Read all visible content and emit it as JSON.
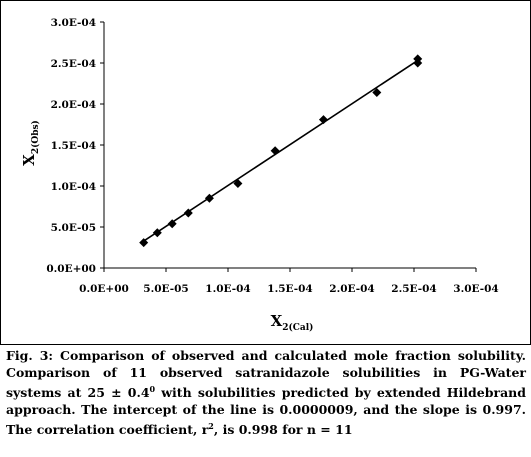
{
  "chart_data": {
    "type": "scatter",
    "xlabel": "X",
    "xlabel_sub": "2(Cal)",
    "ylabel": "X",
    "ylabel_sub": "2(Obs)",
    "xlim": [
      0,
      0.0003
    ],
    "ylim": [
      0,
      0.0003
    ],
    "x_ticks": [
      "0.0E+00",
      "5.0E-05",
      "1.0E-04",
      "1.5E-04",
      "2.0E-04",
      "2.5E-04",
      "3.0E-04"
    ],
    "y_ticks": [
      "0.0E+00",
      "5.0E-05",
      "1.0E-04",
      "1.5E-04",
      "2.0E-04",
      "2.5E-04",
      "3.0E-04"
    ],
    "grid": false,
    "legend": "none",
    "series": [
      {
        "points": [
          {
            "x": 3.2e-05,
            "y": 3.1e-05
          },
          {
            "x": 4.3e-05,
            "y": 4.3e-05
          },
          {
            "x": 5.5e-05,
            "y": 5.4e-05
          },
          {
            "x": 6.8e-05,
            "y": 6.7e-05
          },
          {
            "x": 8.5e-05,
            "y": 8.5e-05
          },
          {
            "x": 0.000108,
            "y": 0.000103
          },
          {
            "x": 0.000138,
            "y": 0.000143
          },
          {
            "x": 0.000177,
            "y": 0.000181
          },
          {
            "x": 0.00022,
            "y": 0.000214
          },
          {
            "x": 0.000253,
            "y": 0.00025
          },
          {
            "x": 0.000253,
            "y": 0.000255
          }
        ]
      }
    ],
    "trendline": {
      "intercept": 9e-07,
      "slope": 0.997,
      "x_range": [
        3.2e-05,
        0.000253
      ]
    }
  },
  "caption": {
    "fig_label": "Fig. 3:",
    "title": " Comparison of observed and calculated mole fraction solubility.",
    "text_before_sup": " Comparison of 11 observed satranidazole solubilities in PG-Water systems at 25 ± 0.4",
    "sup1": "0",
    "text_middle": " with solubilities predicted by extended Hildebrand approach. The intercept of the line is 0.0000009, and the slope is 0.997. The correlation coefficient, r",
    "sup2": "2",
    "text_after": ", is 0.998 for n = 11"
  },
  "colors": {
    "marker": "#000000",
    "line": "#000000",
    "axis": "#000000"
  }
}
